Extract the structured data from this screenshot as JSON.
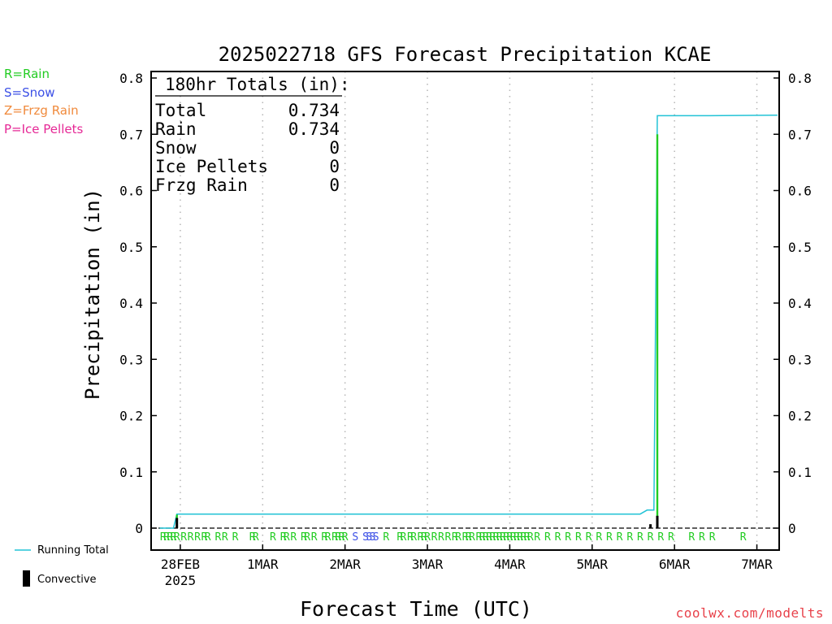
{
  "chart_data": {
    "type": "line",
    "title": "2025022718 GFS Forecast Precipitation KCAE",
    "xlabel": "Forecast Time (UTC)",
    "ylabel": "Precipitation (in)",
    "ylim": [
      0,
      0.8
    ],
    "yticks": [
      "0",
      "0.1",
      "0.2",
      "0.3",
      "0.4",
      "0.5",
      "0.6",
      "0.7",
      "0.8"
    ],
    "xlim_hours": [
      -2.5,
      180.5
    ],
    "xticks": [
      {
        "label": "28FEB",
        "hour": 6
      },
      {
        "label": "1MAR",
        "hour": 30
      },
      {
        "label": "2MAR",
        "hour": 54
      },
      {
        "label": "3MAR",
        "hour": 78
      },
      {
        "label": "4MAR",
        "hour": 102
      },
      {
        "label": "5MAR",
        "hour": 126
      },
      {
        "label": "6MAR",
        "hour": 150
      },
      {
        "label": "7MAR",
        "hour": 174
      }
    ],
    "year_label": "2025",
    "grid": true,
    "totals_box": {
      "heading": "180hr Totals (in):",
      "rows": [
        {
          "label": "Total",
          "value": "0.734"
        },
        {
          "label": "Rain",
          "value": "0.734"
        },
        {
          "label": "Snow",
          "value": "0"
        },
        {
          "label": "Ice Pellets",
          "value": "0"
        },
        {
          "label": "Frzg Rain",
          "value": "0"
        }
      ]
    },
    "series": [
      {
        "name": "Running Total",
        "color": "#22c3d6",
        "points": [
          [
            0,
            0
          ],
          [
            4,
            0
          ],
          [
            5,
            0.025
          ],
          [
            140,
            0.025
          ],
          [
            142,
            0.032
          ],
          [
            144,
            0.032
          ],
          [
            145,
            0.733
          ],
          [
            160,
            0.733
          ],
          [
            180,
            0.734
          ]
        ]
      },
      {
        "name": "Rain",
        "color": "#22cc22",
        "bars": [
          [
            5,
            0.024
          ],
          [
            145,
            0.7
          ]
        ]
      },
      {
        "name": "Convective",
        "color": "#000000",
        "bars": [
          [
            5,
            0.018
          ],
          [
            143,
            0.007
          ],
          [
            145,
            0.022
          ]
        ]
      }
    ],
    "ptype_markers": [
      {
        "t": "R",
        "h": 1
      },
      {
        "t": "R",
        "h": 2
      },
      {
        "t": "R",
        "h": 3
      },
      {
        "t": "R",
        "h": 4
      },
      {
        "t": "R",
        "h": 5
      },
      {
        "t": "R",
        "h": 7
      },
      {
        "t": "R",
        "h": 9
      },
      {
        "t": "R",
        "h": 11
      },
      {
        "t": "R",
        "h": 13
      },
      {
        "t": "R",
        "h": 14
      },
      {
        "t": "R",
        "h": 17
      },
      {
        "t": "R",
        "h": 19
      },
      {
        "t": "R",
        "h": 22
      },
      {
        "t": "R",
        "h": 27
      },
      {
        "t": "R",
        "h": 28
      },
      {
        "t": "R",
        "h": 33
      },
      {
        "t": "R",
        "h": 36
      },
      {
        "t": "R",
        "h": 37
      },
      {
        "t": "R",
        "h": 39
      },
      {
        "t": "R",
        "h": 42
      },
      {
        "t": "R",
        "h": 43
      },
      {
        "t": "R",
        "h": 45
      },
      {
        "t": "R",
        "h": 48
      },
      {
        "t": "R",
        "h": 49
      },
      {
        "t": "R",
        "h": 51
      },
      {
        "t": "R",
        "h": 52
      },
      {
        "t": "R",
        "h": 53
      },
      {
        "t": "R",
        "h": 54
      },
      {
        "t": "S",
        "h": 57
      },
      {
        "t": "S",
        "h": 60
      },
      {
        "t": "S",
        "h": 61
      },
      {
        "t": "S",
        "h": 62
      },
      {
        "t": "S",
        "h": 63
      },
      {
        "t": "R",
        "h": 66
      },
      {
        "t": "R",
        "h": 70
      },
      {
        "t": "R",
        "h": 71
      },
      {
        "t": "R",
        "h": 73
      },
      {
        "t": "R",
        "h": 74
      },
      {
        "t": "R",
        "h": 76
      },
      {
        "t": "R",
        "h": 77
      },
      {
        "t": "R",
        "h": 78
      },
      {
        "t": "R",
        "h": 80
      },
      {
        "t": "R",
        "h": 82
      },
      {
        "t": "R",
        "h": 84
      },
      {
        "t": "R",
        "h": 86
      },
      {
        "t": "R",
        "h": 87
      },
      {
        "t": "R",
        "h": 89
      },
      {
        "t": "R",
        "h": 90
      },
      {
        "t": "R",
        "h": 91
      },
      {
        "t": "R",
        "h": 93
      },
      {
        "t": "R",
        "h": 94
      },
      {
        "t": "R",
        "h": 95
      },
      {
        "t": "R",
        "h": 96
      },
      {
        "t": "R",
        "h": 97
      },
      {
        "t": "R",
        "h": 98
      },
      {
        "t": "R",
        "h": 99
      },
      {
        "t": "R",
        "h": 100
      },
      {
        "t": "R",
        "h": 101
      },
      {
        "t": "R",
        "h": 102
      },
      {
        "t": "R",
        "h": 103
      },
      {
        "t": "R",
        "h": 104
      },
      {
        "t": "R",
        "h": 105
      },
      {
        "t": "R",
        "h": 106
      },
      {
        "t": "R",
        "h": 107
      },
      {
        "t": "R",
        "h": 108
      },
      {
        "t": "R",
        "h": 110
      },
      {
        "t": "R",
        "h": 113
      },
      {
        "t": "R",
        "h": 116
      },
      {
        "t": "R",
        "h": 119
      },
      {
        "t": "R",
        "h": 122
      },
      {
        "t": "R",
        "h": 125
      },
      {
        "t": "R",
        "h": 128
      },
      {
        "t": "R",
        "h": 131
      },
      {
        "t": "R",
        "h": 134
      },
      {
        "t": "R",
        "h": 137
      },
      {
        "t": "R",
        "h": 140
      },
      {
        "t": "R",
        "h": 143
      },
      {
        "t": "R",
        "h": 146
      },
      {
        "t": "R",
        "h": 149
      },
      {
        "t": "R",
        "h": 155
      },
      {
        "t": "R",
        "h": 158
      },
      {
        "t": "R",
        "h": 161
      },
      {
        "t": "R",
        "h": 170
      }
    ]
  },
  "ptype_legend": [
    {
      "label": "R=Rain",
      "color": "#22cc22"
    },
    {
      "label": "S=Snow",
      "color": "#3c50e6"
    },
    {
      "label": "Z=Frzg Rain",
      "color": "#f08a3c"
    },
    {
      "label": "P=Ice Pellets",
      "color": "#e62896"
    }
  ],
  "colors": {
    "rain": "#22cc22",
    "snow": "#3c50e6",
    "running_total": "#22c3d6",
    "convective": "#000000",
    "watermark": "#e8414a"
  },
  "bottom_legend": {
    "running_total_label": "Running Total",
    "convective_label": "Convective"
  },
  "watermark": "coolwx.com/modelts"
}
